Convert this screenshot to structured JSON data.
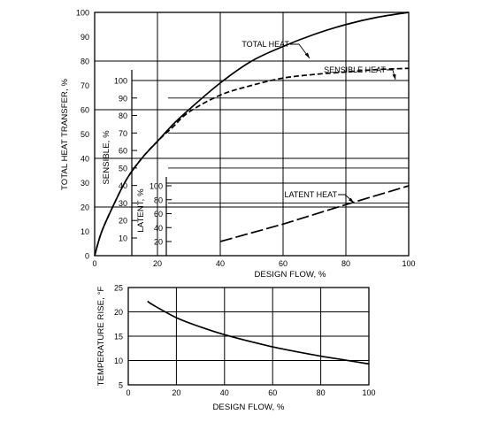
{
  "chart_data": [
    {
      "type": "line",
      "xlabel": "DESIGN FLOW, %",
      "ylabel": "TOTAL HEAT TRANSFER, %",
      "xlim": [
        0,
        100
      ],
      "ylim": [
        0,
        100
      ],
      "x_ticks": [
        0,
        20,
        40,
        60,
        80,
        100
      ],
      "y_ticks": [
        0,
        10,
        20,
        30,
        40,
        50,
        60,
        70,
        80,
        90,
        100
      ],
      "grid": true,
      "inner_axes": [
        {
          "label": "SENSIBLE, %",
          "ticks": [
            10,
            20,
            30,
            40,
            50,
            60,
            70,
            80,
            90,
            100
          ]
        },
        {
          "label": "LATENT, %",
          "ticks": [
            20,
            40,
            60,
            80,
            100
          ]
        }
      ],
      "series": [
        {
          "name": "TOTAL HEAT",
          "style": "solid",
          "x": [
            0,
            2,
            5,
            10,
            15,
            20,
            25,
            30,
            40,
            50,
            60,
            70,
            80,
            90,
            100
          ],
          "y": [
            0,
            9,
            18,
            31,
            40,
            47,
            54,
            60,
            71,
            80,
            86,
            91,
            95,
            98,
            100
          ]
        },
        {
          "name": "SENSIBLE HEAT",
          "style": "dashed",
          "x": [
            0,
            2,
            5,
            10,
            15,
            20,
            25,
            30,
            40,
            50,
            60,
            70,
            80,
            90,
            100
          ],
          "y": [
            0,
            9,
            18,
            31,
            40,
            47,
            53,
            59,
            66,
            70,
            73,
            74.5,
            75.5,
            76.5,
            77
          ]
        },
        {
          "name": "LATENT HEAT",
          "style": "long-dash",
          "x": [
            40,
            60,
            80,
            100
          ],
          "y": [
            20,
            45,
            73,
            100
          ]
        }
      ]
    },
    {
      "type": "line",
      "xlabel": "DESIGN FLOW, %",
      "ylabel": "TEMPERATURE RISE, °F",
      "xlim": [
        0,
        100
      ],
      "ylim": [
        5,
        25
      ],
      "x_ticks": [
        0,
        20,
        40,
        60,
        80,
        100
      ],
      "y_ticks": [
        5,
        10,
        15,
        20,
        25
      ],
      "grid": true,
      "series": [
        {
          "style": "solid",
          "x": [
            8,
            10,
            20,
            30,
            40,
            50,
            60,
            70,
            80,
            90,
            100
          ],
          "y": [
            22.2,
            21.5,
            18.8,
            16.9,
            15.3,
            14.0,
            12.8,
            11.8,
            10.9,
            10.1,
            9.3
          ]
        }
      ]
    }
  ]
}
